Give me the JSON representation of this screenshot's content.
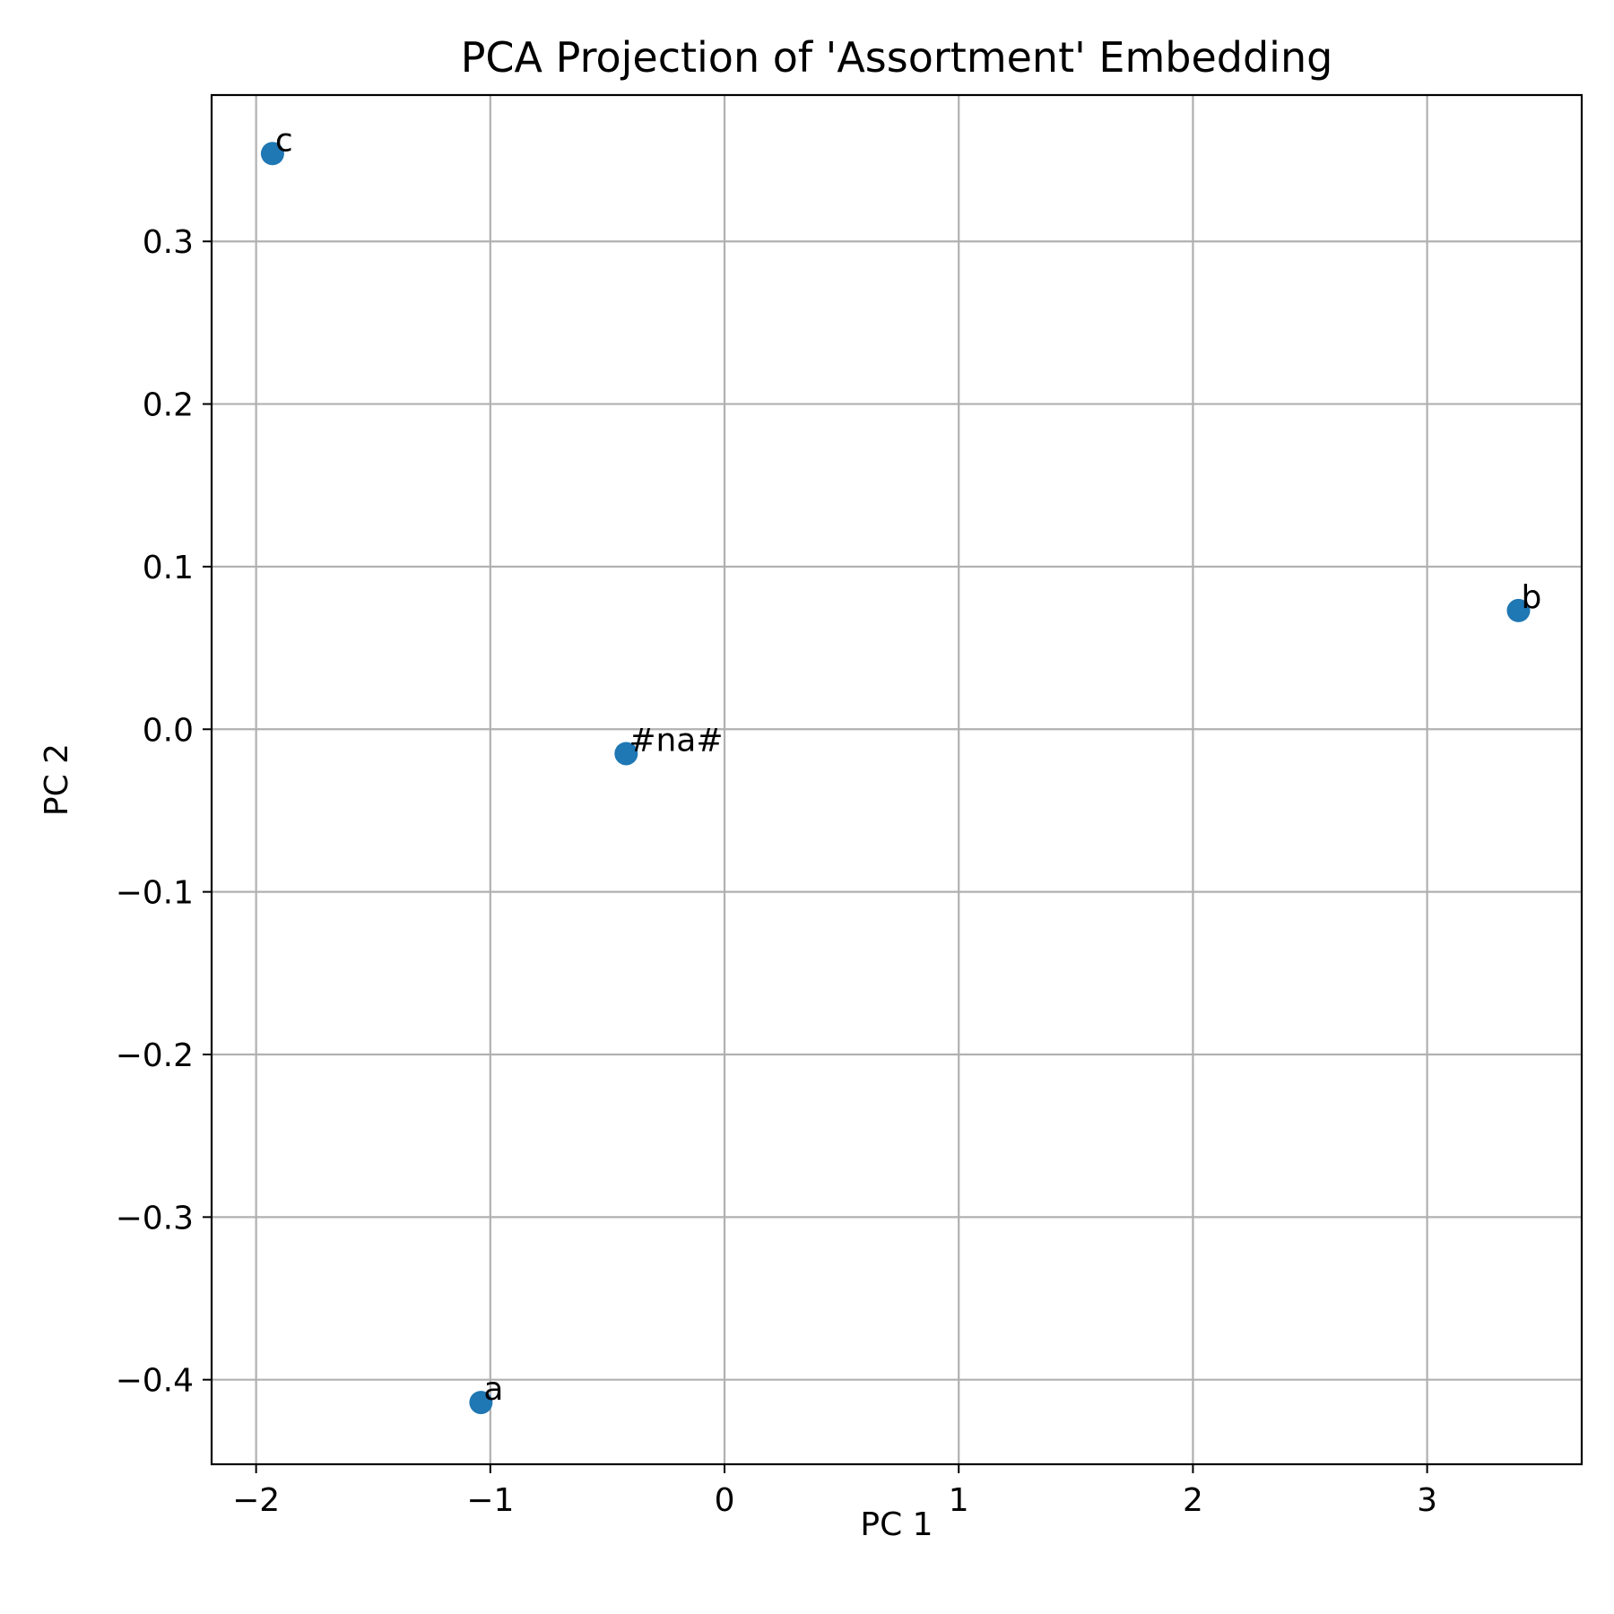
{
  "chart_data": {
    "type": "scatter",
    "title": "PCA Projection of 'Assortment' Embedding",
    "xlabel": "PC 1",
    "ylabel": "PC 2",
    "xlim": [
      -2.19,
      3.66
    ],
    "ylim": [
      -0.452,
      0.39
    ],
    "xticks": [
      -2,
      -1,
      0,
      1,
      2,
      3
    ],
    "xtick_labels": [
      "−2",
      "−1",
      "0",
      "1",
      "2",
      "3"
    ],
    "yticks": [
      -0.4,
      -0.3,
      -0.2,
      -0.1,
      0.0,
      0.1,
      0.2,
      0.3
    ],
    "ytick_labels": [
      "−0.4",
      "−0.3",
      "−0.2",
      "−0.1",
      "0.0",
      "0.1",
      "0.2",
      "0.3"
    ],
    "grid": true,
    "marker_color": "#1f77b4",
    "points": [
      {
        "label": "c",
        "x": -1.93,
        "y": 0.354
      },
      {
        "label": "b",
        "x": 3.39,
        "y": 0.073
      },
      {
        "label": "#na#",
        "x": -0.42,
        "y": -0.015
      },
      {
        "label": "a",
        "x": -1.04,
        "y": -0.414
      }
    ]
  }
}
